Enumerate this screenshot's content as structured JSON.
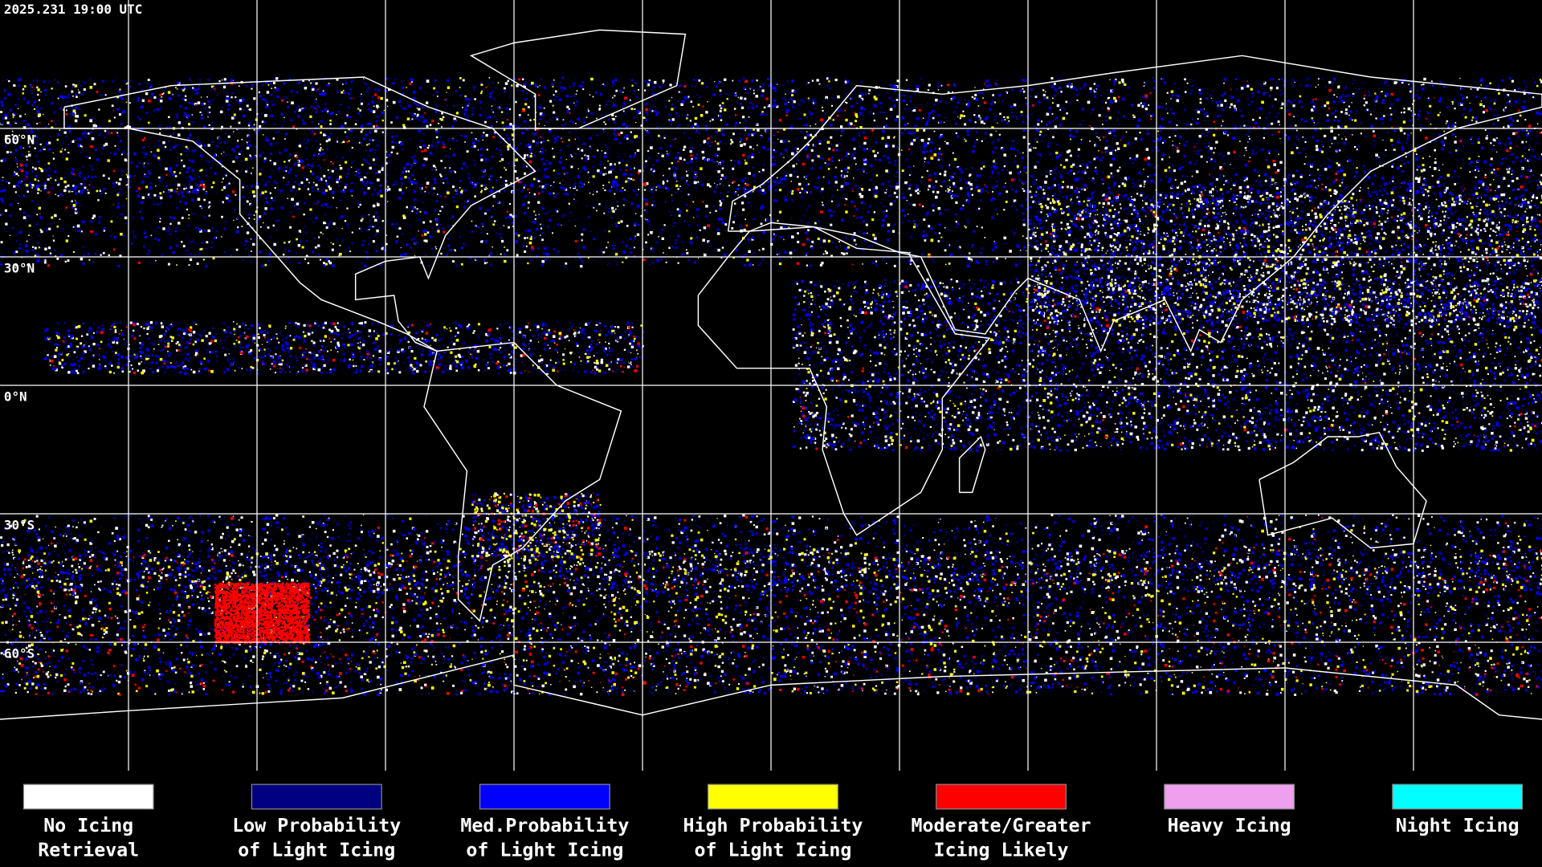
{
  "header": {
    "timestamp": "2025.231 19:00 UTC"
  },
  "map": {
    "lat_lines": [
      {
        "lat": 60,
        "label": "60°N"
      },
      {
        "lat": 30,
        "label": "30°N"
      },
      {
        "lat": 0,
        "label": "0°N"
      },
      {
        "lat": -30,
        "label": "30°S"
      },
      {
        "lat": -60,
        "label": "60°S"
      }
    ]
  },
  "legend": [
    {
      "color": "#ffffff",
      "lines": [
        "No Icing",
        "Retrieval"
      ]
    },
    {
      "color": "#000080",
      "lines": [
        "Low Probability",
        "of Light Icing"
      ]
    },
    {
      "color": "#0000ff",
      "lines": [
        "Med.Probability",
        "of Light Icing"
      ]
    },
    {
      "color": "#ffff00",
      "lines": [
        "High Probability",
        "of Light Icing"
      ]
    },
    {
      "color": "#ff0000",
      "lines": [
        "Moderate/Greater",
        "Icing Likely"
      ]
    },
    {
      "color": "#ee9fee",
      "lines": [
        "Heavy Icing"
      ]
    },
    {
      "color": "#00ffff",
      "lines": [
        "Night Icing"
      ]
    }
  ]
}
